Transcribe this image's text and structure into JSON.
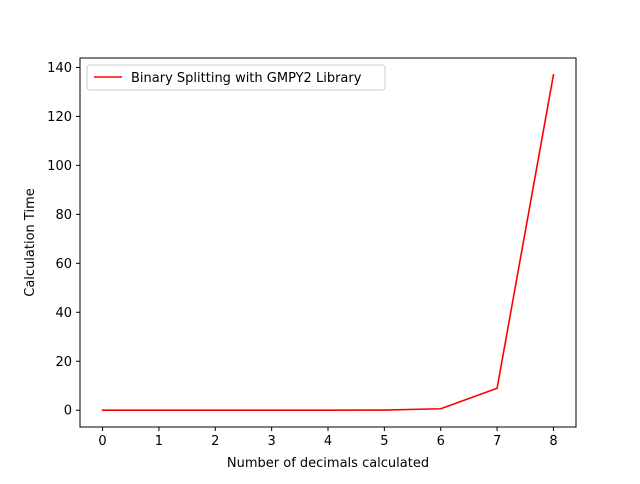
{
  "chart_data": {
    "type": "line",
    "title": "",
    "xlabel": "Number of decimals calculated",
    "ylabel": "Calculation Time",
    "x": [
      0,
      1,
      2,
      3,
      4,
      5,
      6,
      7,
      8
    ],
    "series": [
      {
        "name": "Binary Splitting with GMPY2 Library",
        "color": "#ff0000",
        "values": [
          0.0,
          0.0,
          0.0,
          0.0,
          0.0,
          0.05,
          0.6,
          9.0,
          137.0
        ]
      }
    ],
    "xlim": [
      -0.4,
      8.4
    ],
    "ylim": [
      -6.85,
      143.85
    ],
    "xticks": [
      0,
      1,
      2,
      3,
      4,
      5,
      6,
      7,
      8
    ],
    "yticks": [
      0,
      20,
      40,
      60,
      80,
      100,
      120,
      140
    ],
    "grid": false,
    "legend_position": "top-left"
  }
}
